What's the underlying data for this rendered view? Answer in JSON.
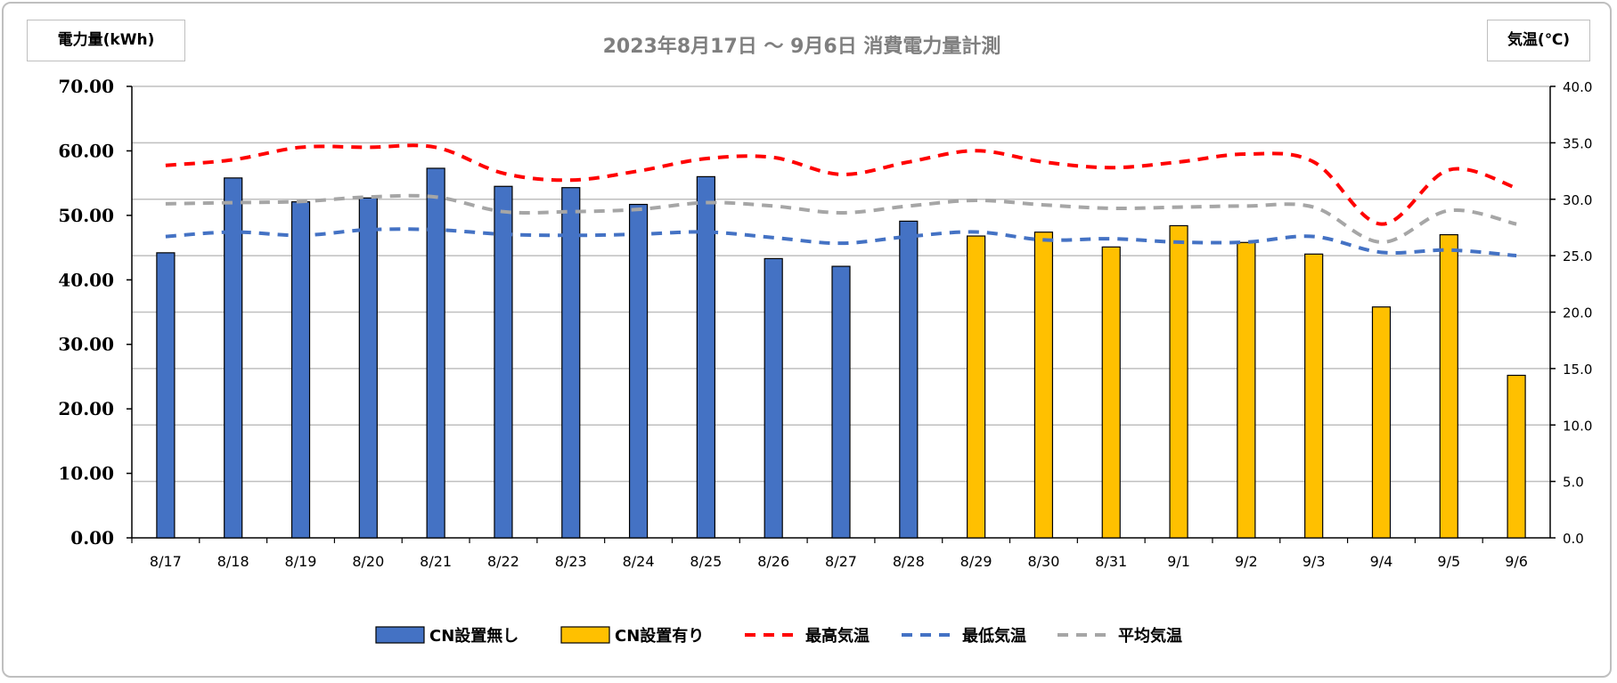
{
  "title": "2023年8月17日 ～ 9月6日 消費電力量計測",
  "left_unit_label": "電力量(kWh)",
  "right_unit_label": "気温(℃)",
  "colors": {
    "no_cn": "#4472c4",
    "with_cn": "#ffc000",
    "max_temp": "#ff0000",
    "min_temp": "#4472c4",
    "avg_temp": "#a6a6a6",
    "grid": "#bfbfbf",
    "title": "#7f7f7f"
  },
  "chart_data": {
    "type": "bar",
    "title": "2023年8月17日 ～ 9月6日 消費電力量計測",
    "categories": [
      "8/17",
      "8/18",
      "8/19",
      "8/20",
      "8/21",
      "8/22",
      "8/23",
      "8/24",
      "8/25",
      "8/26",
      "8/27",
      "8/28",
      "8/29",
      "8/30",
      "8/31",
      "9/1",
      "9/2",
      "9/3",
      "9/4",
      "9/5",
      "9/6"
    ],
    "y_left": {
      "label": "電力量(kWh)",
      "range": [
        0,
        70
      ],
      "ticks": [
        "0.00",
        "10.00",
        "20.00",
        "30.00",
        "40.00",
        "50.00",
        "60.00",
        "70.00"
      ]
    },
    "y_right": {
      "label": "気温(℃)",
      "range": [
        0,
        40
      ],
      "ticks": [
        "0.0",
        "5.0",
        "10.0",
        "15.0",
        "20.0",
        "25.0",
        "30.0",
        "35.0",
        "40.0"
      ]
    },
    "grid": true,
    "legend_position": "bottom",
    "series": [
      {
        "name": "CN設置無し",
        "type": "bar",
        "axis": "left",
        "color": "#4472c4",
        "values": [
          44.2,
          55.8,
          52.1,
          52.7,
          57.3,
          54.5,
          54.3,
          51.7,
          56.0,
          43.3,
          42.1,
          49.1,
          null,
          null,
          null,
          null,
          null,
          null,
          null,
          null,
          null
        ]
      },
      {
        "name": "CN設置有り",
        "type": "bar",
        "axis": "left",
        "color": "#ffc000",
        "values": [
          null,
          null,
          null,
          null,
          null,
          null,
          null,
          null,
          null,
          null,
          null,
          null,
          46.8,
          47.4,
          45.1,
          48.4,
          45.8,
          44.0,
          35.8,
          47.0,
          25.2
        ]
      },
      {
        "name": "最高気温",
        "type": "line",
        "axis": "right",
        "dash": true,
        "color": "#ff0000",
        "values": [
          33.0,
          33.5,
          34.6,
          34.6,
          34.6,
          32.3,
          31.7,
          32.5,
          33.6,
          33.7,
          32.2,
          33.3,
          34.3,
          33.3,
          32.8,
          33.3,
          34.0,
          33.3,
          27.8,
          32.6,
          31.0
        ]
      },
      {
        "name": "最低気温",
        "type": "line",
        "axis": "right",
        "dash": true,
        "color": "#4472c4",
        "values": [
          26.7,
          27.1,
          26.8,
          27.3,
          27.3,
          26.9,
          26.8,
          26.9,
          27.1,
          26.6,
          26.1,
          26.7,
          27.1,
          26.4,
          26.5,
          26.2,
          26.2,
          26.7,
          25.3,
          25.5,
          25.0
        ]
      },
      {
        "name": "平均気温",
        "type": "line",
        "axis": "right",
        "dash": true,
        "color": "#a6a6a6",
        "values": [
          29.6,
          29.7,
          29.8,
          30.2,
          30.2,
          28.9,
          28.9,
          29.1,
          29.7,
          29.4,
          28.8,
          29.4,
          29.9,
          29.5,
          29.2,
          29.3,
          29.4,
          29.3,
          26.2,
          29.0,
          27.8
        ]
      }
    ]
  }
}
